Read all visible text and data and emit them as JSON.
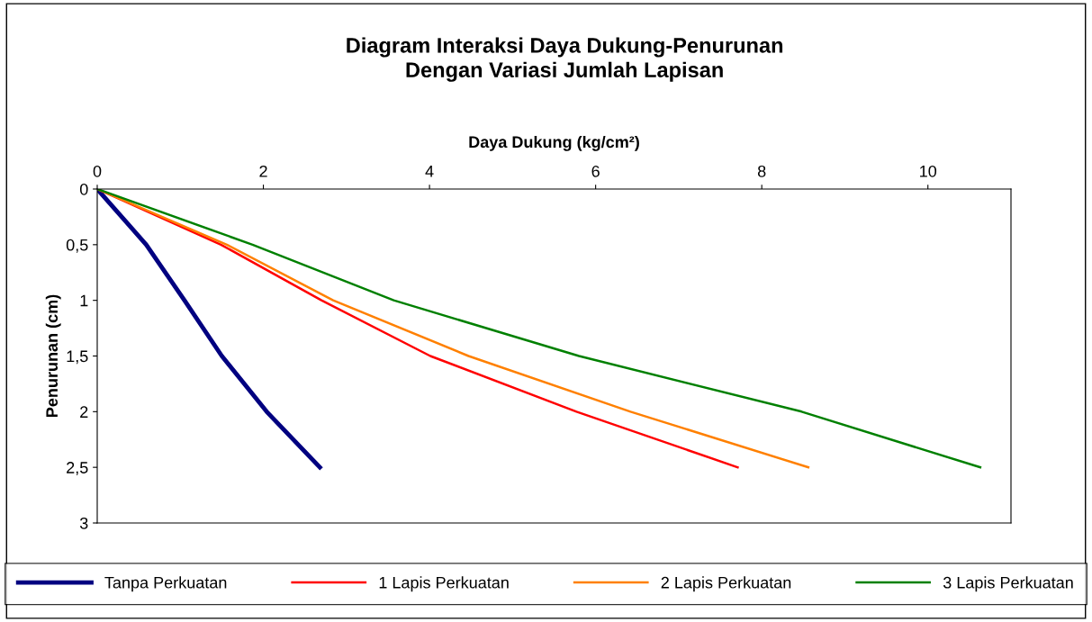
{
  "chart_data": {
    "type": "line",
    "title": "Diagram Interaksi Daya Dukung-Penurunan\nDengan Variasi Jumlah Lapisan",
    "xlabel": "Daya Dukung (kg/cm²)",
    "ylabel": "Penurunan (cm)",
    "xlim": [
      0,
      11
    ],
    "xticks": [
      0,
      2,
      4,
      6,
      8,
      10
    ],
    "ylim": [
      3,
      0
    ],
    "yticks": [
      0,
      {
        "value": 0.5,
        "label": "0,5"
      },
      1,
      {
        "value": 1.5,
        "label": "1,5"
      },
      2,
      {
        "value": 2.5,
        "label": "2,5"
      },
      3
    ],
    "grid": false,
    "legend": "bottom",
    "marker": "none",
    "line_style": "solid",
    "series": [
      {
        "name": "Tanpa Perkuatan",
        "color": "#000080",
        "x": [
          0,
          0.59,
          1.05,
          1.5,
          2.04,
          2.68
        ],
        "values": [
          0,
          0.5,
          1,
          1.5,
          2,
          2.5
        ]
      },
      {
        "name": "1 Lapis Perkuatan",
        "color": "#ff0000",
        "x": [
          0,
          1.49,
          2.7,
          4.01,
          5.77,
          7.71
        ],
        "values": [
          0,
          0.5,
          1,
          1.5,
          2,
          2.5
        ]
      },
      {
        "name": "2 Lapis Perkuatan",
        "color": "#ff8000",
        "x": [
          0,
          1.56,
          2.84,
          4.47,
          6.42,
          8.56
        ],
        "values": [
          0,
          0.5,
          1,
          1.5,
          2,
          2.5
        ]
      },
      {
        "name": "3 Lapis Perkuatan",
        "color": "#008000",
        "x": [
          0,
          1.87,
          3.57,
          5.8,
          8.48,
          10.63
        ],
        "values": [
          0,
          0.5,
          1,
          1.5,
          2,
          2.5
        ]
      }
    ]
  }
}
